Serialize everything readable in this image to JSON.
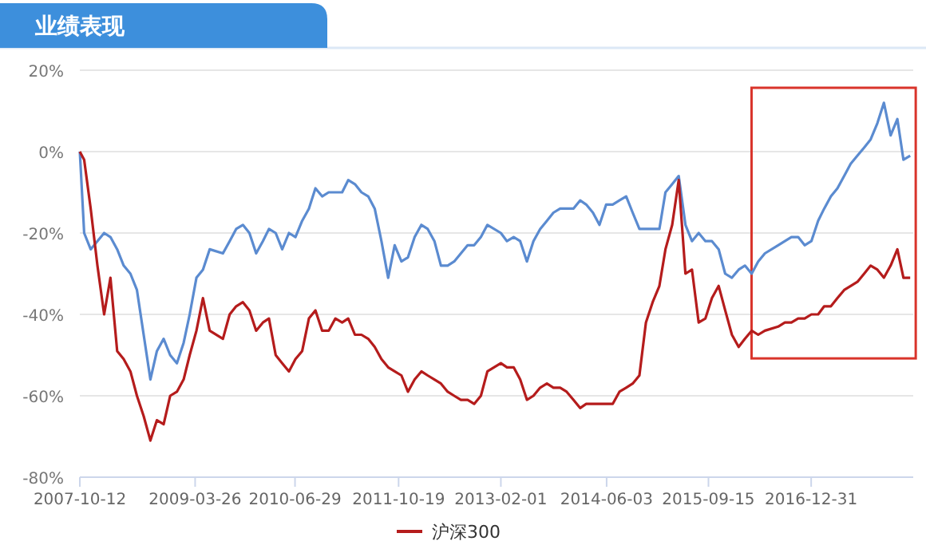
{
  "chart_data": {
    "type": "line",
    "title": "业绩表现",
    "x": [
      "2007-10-12",
      "2007-11",
      "2007-12",
      "2008-01",
      "2008-02",
      "2008-03",
      "2008-04",
      "2008-05",
      "2008-06",
      "2008-07",
      "2008-08",
      "2008-09",
      "2008-10",
      "2008-11",
      "2008-12",
      "2009-01",
      "2009-02",
      "2009-03",
      "2009-04",
      "2009-05",
      "2009-06",
      "2009-08",
      "2009-09",
      "2009-10",
      "2009-11",
      "2009-12",
      "2010-01",
      "2010-02",
      "2010-03",
      "2010-04",
      "2010-05",
      "2010-06",
      "2010-07",
      "2010-08",
      "2010-09",
      "2010-10",
      "2010-11",
      "2010-12",
      "2011-01",
      "2011-02",
      "2011-03",
      "2011-04",
      "2011-05",
      "2011-06",
      "2011-07",
      "2011-08",
      "2011-09",
      "2011-10",
      "2011-11",
      "2011-12",
      "2012-01",
      "2012-02",
      "2012-03",
      "2012-04",
      "2012-05",
      "2012-06",
      "2012-07",
      "2012-08",
      "2012-09",
      "2012-10",
      "2012-11",
      "2012-12",
      "2013-02",
      "2013-03",
      "2013-04",
      "2013-05",
      "2013-06",
      "2013-07",
      "2013-08",
      "2013-09",
      "2013-10",
      "2013-11",
      "2013-12",
      "2014-01",
      "2014-02",
      "2014-03",
      "2014-04",
      "2014-05",
      "2014-06",
      "2014-07",
      "2014-08",
      "2014-09",
      "2014-10",
      "2014-11",
      "2014-12",
      "2015-01",
      "2015-02",
      "2015-03",
      "2015-04",
      "2015-05",
      "2015-06",
      "2015-07",
      "2015-08",
      "2015-09",
      "2015-10",
      "2015-11",
      "2015-12",
      "2016-01",
      "2016-02",
      "2016-03",
      "2016-04",
      "2016-05",
      "2016-06",
      "2016-08",
      "2016-09",
      "2016-10",
      "2016-11",
      "2016-12",
      "2017-01",
      "2017-02",
      "2017-03",
      "2017-04",
      "2017-05",
      "2017-06",
      "2017-07",
      "2017-08",
      "2017-09",
      "2017-10",
      "2017-11",
      "2017-12",
      "2018-01",
      "2018-02",
      "2018-03",
      "2018-04"
    ],
    "series": [
      {
        "color": "#5b8bd0",
        "values": [
          0,
          -20,
          -24,
          -22,
          -20,
          -21,
          -24,
          -28,
          -30,
          -34,
          -45,
          -56,
          -49,
          -46,
          -50,
          -52,
          -47,
          -40,
          -31,
          -29,
          -24,
          -25,
          -22,
          -19,
          -18,
          -20,
          -25,
          -22,
          -19,
          -20,
          -24,
          -20,
          -21,
          -17,
          -14,
          -9,
          -11,
          -10,
          -10,
          -10,
          -7,
          -8,
          -10,
          -11,
          -14,
          -22,
          -31,
          -23,
          -27,
          -26,
          -21,
          -18,
          -19,
          -22,
          -28,
          -28,
          -27,
          -25,
          -23,
          -23,
          -21,
          -18,
          -20,
          -22,
          -21,
          -22,
          -27,
          -22,
          -19,
          -17,
          -15,
          -14,
          -14,
          -14,
          -12,
          -13,
          -15,
          -18,
          -13,
          -13,
          -12,
          -11,
          -15,
          -19,
          -19,
          -19,
          -19,
          -10,
          -8,
          -6,
          -18,
          -22,
          -20,
          -22,
          -22,
          -24,
          -30,
          -31,
          -29,
          -28,
          -30,
          -27,
          -25,
          -23,
          -22,
          -21,
          -21,
          -23,
          -22,
          -17,
          -14,
          -11,
          -9,
          -6,
          -3,
          -1,
          1,
          3,
          7,
          12,
          4,
          8,
          -2,
          -1
        ]
      },
      {
        "name": "沪深300",
        "color": "#b51c1c",
        "values": [
          0,
          -2,
          -14,
          -28,
          -40,
          -31,
          -49,
          -51,
          -54,
          -60,
          -65,
          -71,
          -66,
          -67,
          -60,
          -59,
          -56,
          -50,
          -44,
          -36,
          -44,
          -46,
          -40,
          -38,
          -37,
          -39,
          -44,
          -42,
          -41,
          -50,
          -52,
          -54,
          -51,
          -49,
          -41,
          -39,
          -44,
          -44,
          -41,
          -42,
          -41,
          -45,
          -45,
          -46,
          -48,
          -51,
          -53,
          -54,
          -55,
          -59,
          -56,
          -54,
          -55,
          -56,
          -57,
          -59,
          -60,
          -61,
          -61,
          -62,
          -60,
          -54,
          -52,
          -53,
          -53,
          -56,
          -61,
          -60,
          -58,
          -57,
          -58,
          -58,
          -59,
          -61,
          -63,
          -62,
          -62,
          -62,
          -62,
          -62,
          -59,
          -58,
          -57,
          -55,
          -42,
          -37,
          -33,
          -24,
          -18,
          -7,
          -30,
          -29,
          -42,
          -41,
          -36,
          -33,
          -39,
          -45,
          -48,
          -46,
          -44,
          -45,
          -44,
          -43,
          -42,
          -42,
          -41,
          -41,
          -40,
          -40,
          -38,
          -38,
          -36,
          -34,
          -33,
          -32,
          -30,
          -28,
          -29,
          -31,
          -28,
          -24,
          -31,
          -31
        ]
      }
    ],
    "xlim": [
      "2007-10-12",
      "2018-04-15"
    ],
    "xticks": [
      "2007-10-12",
      "2009-03-26",
      "2010-06-29",
      "2011-10-19",
      "2013-02-01",
      "2014-06-03",
      "2015-09-15",
      "2016-12-31"
    ],
    "ylim": [
      -80,
      20
    ],
    "yticks": [
      {
        "value": -80,
        "label": "-80%"
      },
      {
        "value": -60,
        "label": "-60%"
      },
      {
        "value": -40,
        "label": "-40%"
      },
      {
        "value": -20,
        "label": "-20%"
      },
      {
        "value": 0,
        "label": "0%"
      },
      {
        "value": 20,
        "label": "20%"
      }
    ],
    "grid": "y",
    "legend": "bottom"
  }
}
